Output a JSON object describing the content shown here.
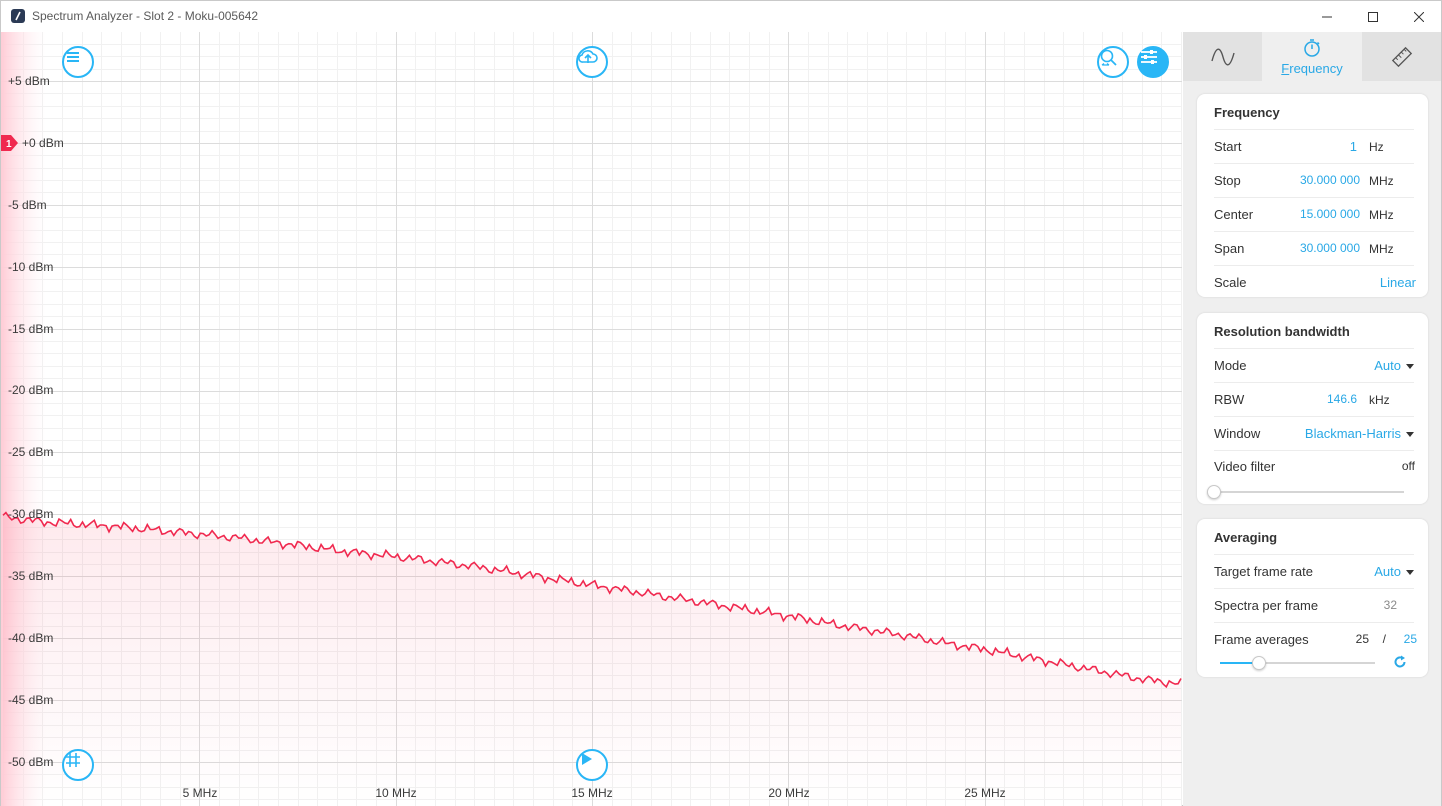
{
  "window": {
    "title": "Spectrum Analyzer - Slot 2 - Moku-005642"
  },
  "plot": {
    "y_ticks": [
      "+5 dBm",
      "+0 dBm",
      "-5 dBm",
      "-10 dBm",
      "-15 dBm",
      "-20 dBm",
      "-25 dBm",
      "-30 dBm",
      "-35 dBm",
      "-40 dBm",
      "-45 dBm",
      "-50 dBm"
    ],
    "x_ticks": [
      "5 MHz",
      "10 MHz",
      "15 MHz",
      "20 MHz",
      "25 MHz"
    ],
    "marker_label": "1",
    "trace_color": "#f0294f",
    "trace": {
      "x_mhz": [
        0,
        1,
        2,
        3,
        4,
        5,
        6,
        7,
        8,
        9,
        10,
        11,
        12,
        13,
        14,
        15,
        16,
        17,
        18,
        19,
        20,
        21,
        22,
        23,
        24,
        25,
        26,
        27,
        28,
        29,
        30
      ],
      "dbm": [
        -30.2,
        -30.6,
        -30.8,
        -31.0,
        -31.3,
        -31.6,
        -31.9,
        -32.3,
        -32.7,
        -33.1,
        -33.4,
        -33.8,
        -34.2,
        -34.7,
        -35.2,
        -35.7,
        -36.2,
        -36.7,
        -37.2,
        -37.7,
        -38.2,
        -38.8,
        -39.3,
        -39.8,
        -40.4,
        -40.9,
        -41.5,
        -42.1,
        -42.7,
        -43.3,
        -43.7
      ]
    }
  },
  "icons": {
    "menu": "menu-icon",
    "cloud": "cloud-upload-icon",
    "zoom": "zoom-icon",
    "settings": "sliders-icon",
    "grid": "grid-icon",
    "play": "play-icon"
  },
  "panel": {
    "tabs": [
      {
        "icon": "waveform-icon",
        "label": ""
      },
      {
        "icon": "stopwatch-icon",
        "label": "Frequency"
      },
      {
        "icon": "ruler-icon",
        "label": ""
      }
    ],
    "frequency": {
      "title": "Frequency",
      "start": {
        "label": "Start",
        "value": "1",
        "unit": "Hz"
      },
      "stop": {
        "label": "Stop",
        "value": "30.000 000",
        "unit": "MHz"
      },
      "center": {
        "label": "Center",
        "value": "15.000 000",
        "unit": "MHz"
      },
      "span": {
        "label": "Span",
        "value": "30.000 000",
        "unit": "MHz"
      },
      "scale": {
        "label": "Scale",
        "value": "Linear"
      }
    },
    "rbw": {
      "title": "Resolution bandwidth",
      "mode": {
        "label": "Mode",
        "value": "Auto"
      },
      "rbw": {
        "label": "RBW",
        "value": "146.6",
        "unit": "kHz"
      },
      "window": {
        "label": "Window",
        "value": "Blackman-Harris"
      },
      "video_filter": {
        "label": "Video filter",
        "value": "off",
        "slider_fraction": 0
      }
    },
    "averaging": {
      "title": "Averaging",
      "target_rate": {
        "label": "Target frame rate",
        "value": "Auto"
      },
      "spectra": {
        "label": "Spectra per frame",
        "value": "32"
      },
      "frame_avg": {
        "label": "Frame averages",
        "current": "25",
        "sep": "/",
        "target": "25",
        "slider_fraction": 0.25
      }
    }
  },
  "colors": {
    "accent": "#29b6f6",
    "trace": "#f0294f"
  }
}
